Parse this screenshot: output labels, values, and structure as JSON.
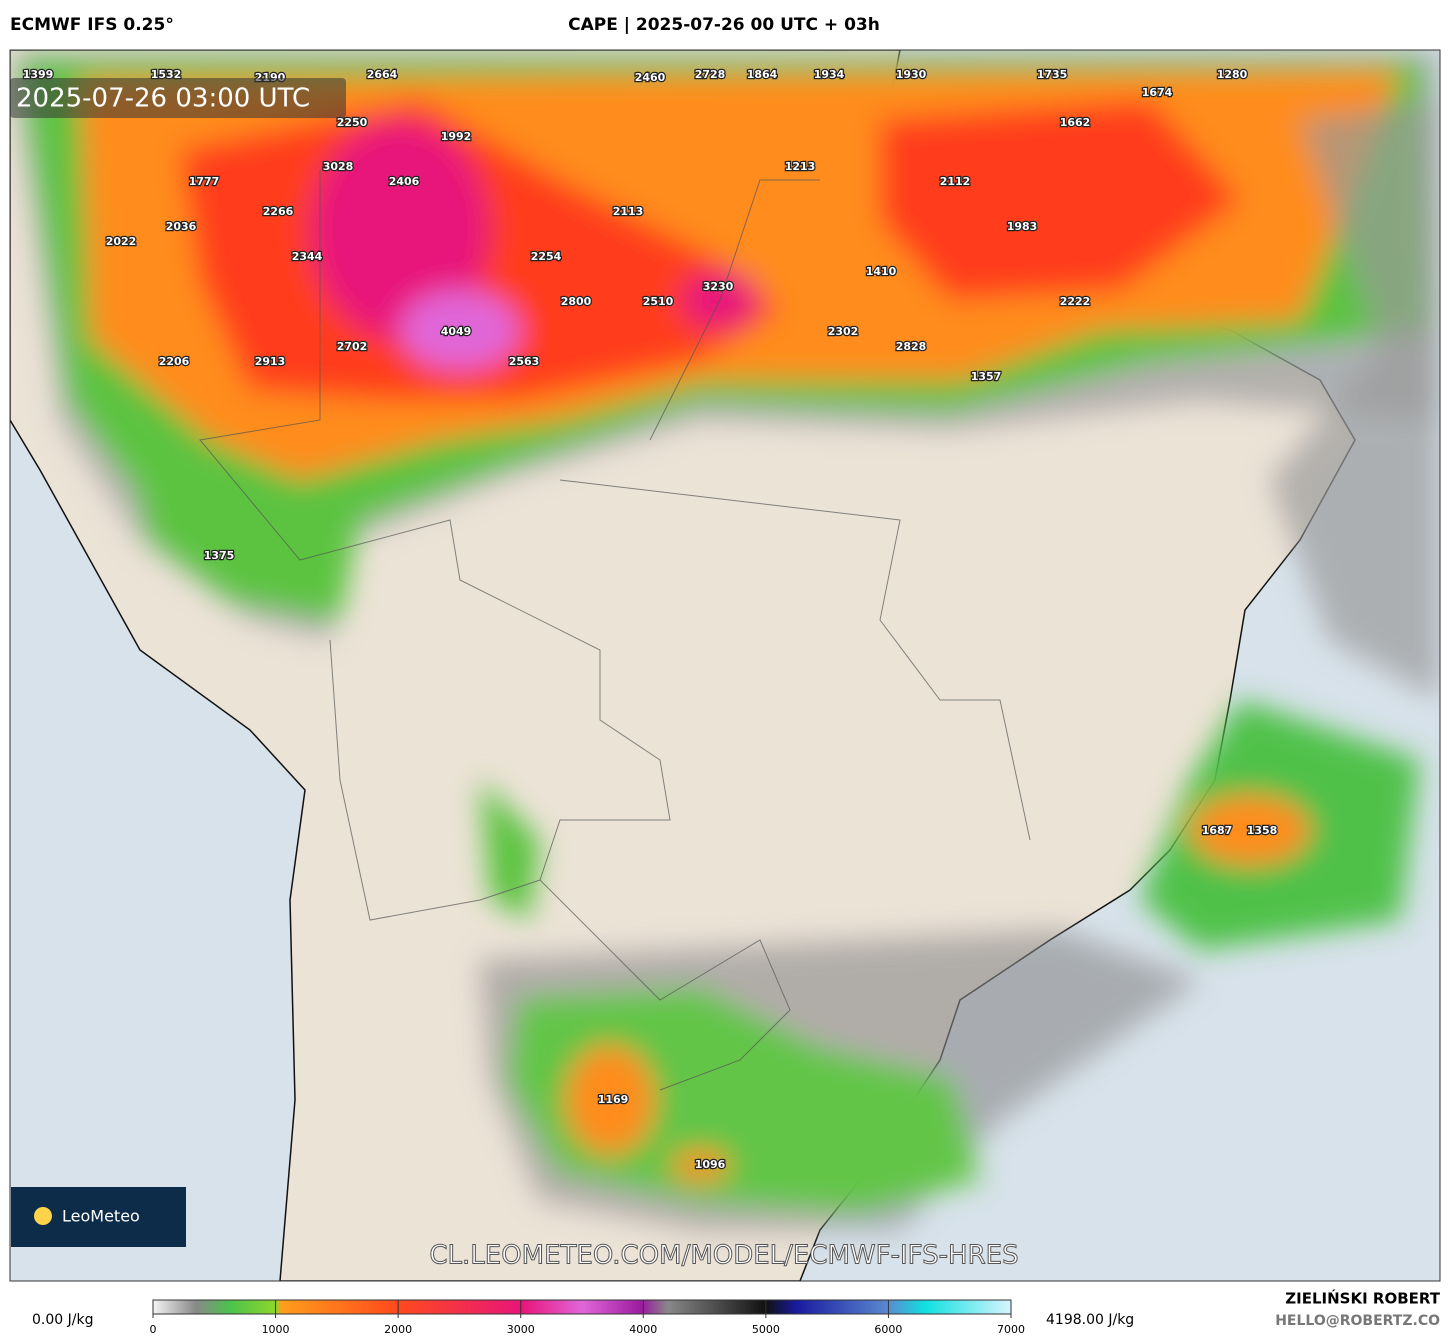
{
  "header": {
    "model": "ECMWF IFS 0.25°",
    "title": "CAPE | 2025-07-26 00 UTC + 03h"
  },
  "map": {
    "timestamp": "2025-07-26 03:00 UTC",
    "watermark": "CL.LEOMETEO.COM/MODEL/ECMWF-IFS-HRES",
    "logo": "LeoMeteo",
    "labels": [
      1399,
      1532,
      2190,
      2664,
      2460,
      2728,
      1864,
      1934,
      1930,
      1735,
      1280,
      1674,
      2250,
      1992,
      1662,
      3028,
      1213,
      1777,
      2406,
      2112,
      2266,
      2113,
      2036,
      1983,
      2022,
      2344,
      2254,
      1410,
      3230,
      2800,
      2510,
      2222,
      4049,
      2302,
      2702,
      2828,
      2206,
      2913,
      2563,
      1357,
      1375,
      1687,
      1358,
      1169,
      1096
    ]
  },
  "colorbar": {
    "min_label": "0.00 J/kg",
    "max_label": "4198.00 J/kg",
    "range": [
      0,
      7000
    ],
    "ticks": [
      0,
      1000,
      2000,
      3000,
      4000,
      5000,
      6000,
      7000
    ]
  },
  "footer": {
    "author": "ZIELIŃSKI ROBERT",
    "email": "HELLO@ROBERTZ.CO"
  }
}
